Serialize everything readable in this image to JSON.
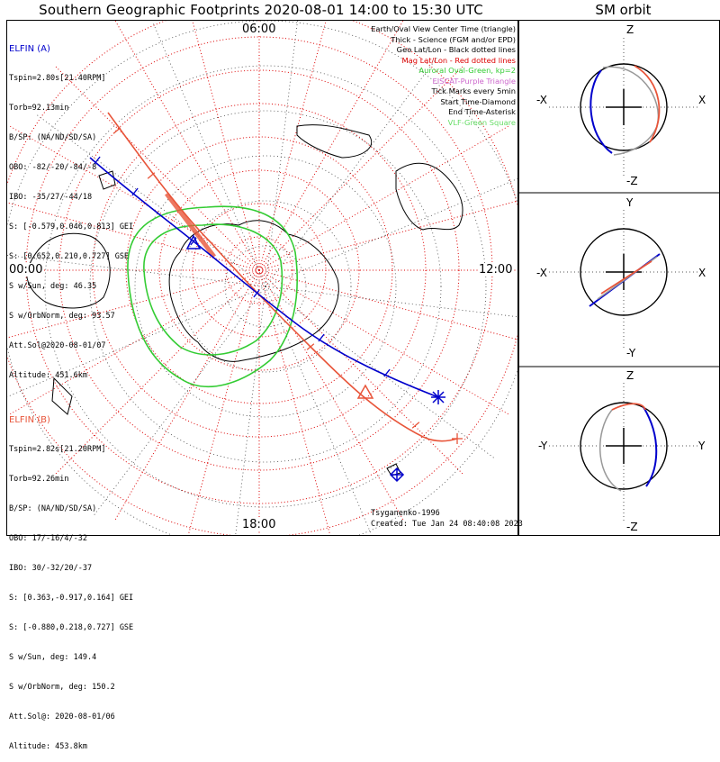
{
  "title": "Southern Geographic Footprints 2020-08-01 14:00 to 15:30 UTC",
  "sm_title": "SM orbit",
  "mlt_labels": {
    "top": "06:00",
    "left": "00:00",
    "right": "12:00",
    "bottom": "18:00"
  },
  "elfin_a": {
    "header": "ELFIN (A)",
    "color": "#0000cc",
    "lines": [
      "Tspin=2.80s[21.40RPM]",
      "Torb=92.13min",
      "B/SP: (NA/ND/SD/SA)",
      "OBO: -82/-20/-84/-8",
      "IBO: -35/27/-44/18",
      "S: [-0.579,0.046,0.813] GEI",
      "S: [0.652,0.210,0.727] GSE",
      "S w/Sun, deg: 46.35",
      "S w/OrbNorm, deg: 93.57",
      "Att.Sol@2020-08-01/07",
      "Altitude: 451.6km"
    ]
  },
  "elfin_b": {
    "header": "ELFIN (B)",
    "color": "#e8553a",
    "lines": [
      "Tspin=2.82s[21.20RPM]",
      "Torb=92.26min",
      "B/SP: (NA/ND/SD/SA)",
      "OBO: 17/-16/4/-32",
      "IBO: 30/-32/20/-37",
      "S: [0.363,-0.917,0.164] GEI",
      "S: [-0.880,0.218,0.727] GSE",
      "S w/Sun, deg: 149.4",
      "S w/OrbNorm, deg: 150.2",
      "Att.Sol@: 2020-08-01/06",
      "Altitude: 453.8km"
    ]
  },
  "legend": [
    {
      "text": "Earth/Oval View Center Time (triangle)",
      "color": "#000000"
    },
    {
      "text": "Thick - Science (FGM and/or EPD)",
      "color": "#000000"
    },
    {
      "text": "Geo Lat/Lon - Black dotted lines",
      "color": "#000000"
    },
    {
      "text": "Mag Lat/Lon - Red dotted lines",
      "color": "#dd0000"
    },
    {
      "text": "Auroral Oval-Green, kp=2",
      "color": "#33cc33"
    },
    {
      "text": "EISCAT-Purple Triangle",
      "color": "#cc66cc"
    },
    {
      "text": "Tick Marks every 5min",
      "color": "#000000"
    },
    {
      "text": "Start Time-Diamond",
      "color": "#000000"
    },
    {
      "text": "End Time-Asterisk",
      "color": "#000000"
    },
    {
      "text": "VLF-Green Square",
      "color": "#66dd66"
    }
  ],
  "credit": {
    "model": "Tsyganenko-1996",
    "created": "Created: Tue Jan 24 08:40:08 2023"
  },
  "sm_panels": [
    {
      "top": "Z",
      "bottom": "-Z",
      "left": "-X",
      "right": "X"
    },
    {
      "top": "Y",
      "bottom": "-Y",
      "left": "-X",
      "right": "X"
    },
    {
      "top": "Z",
      "bottom": "-Z",
      "left": "-Y",
      "right": "Y"
    }
  ]
}
